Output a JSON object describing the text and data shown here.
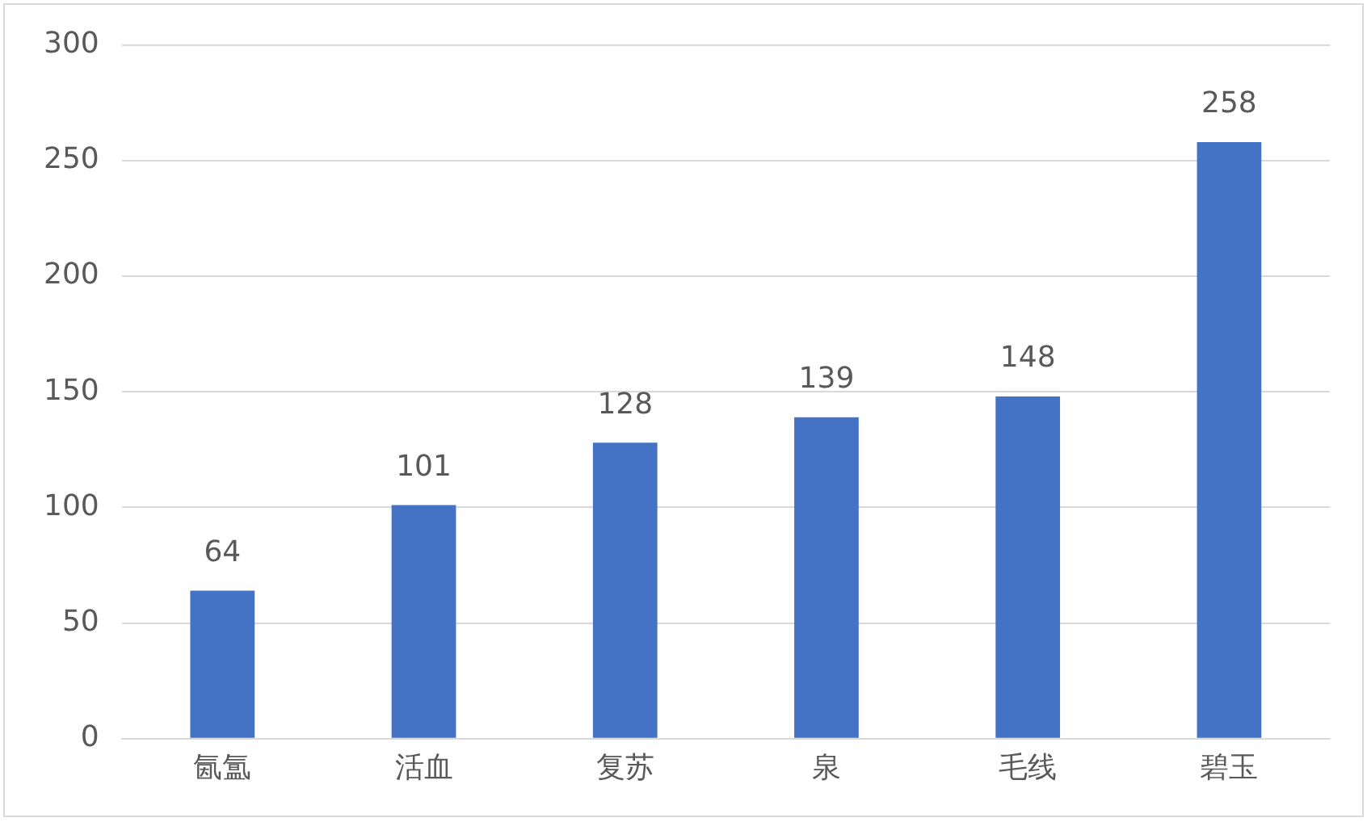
{
  "chart_data": {
    "type": "bar",
    "categories": [
      "氤氲",
      "活血",
      "复苏",
      "泉",
      "毛线",
      "碧玉"
    ],
    "values": [
      64,
      101,
      128,
      139,
      148,
      258
    ],
    "color": "#4472c4",
    "ylim": [
      0,
      300
    ],
    "yticks": [
      0,
      50,
      100,
      150,
      200,
      250,
      300
    ],
    "grid": "y",
    "data_labels": true,
    "legend": false
  }
}
